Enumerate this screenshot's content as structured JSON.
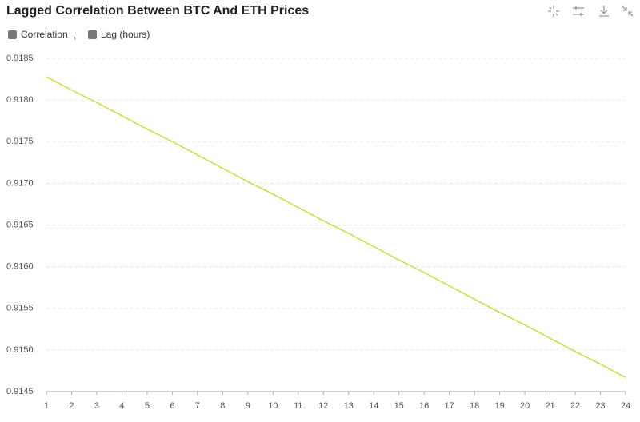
{
  "chart_data": {
    "type": "line",
    "title": "Lagged Correlation Between BTC And ETH Prices",
    "x_label": "Lag (hours)",
    "legend_separator": ",",
    "x": [
      1,
      2,
      3,
      4,
      5,
      6,
      7,
      8,
      9,
      10,
      11,
      12,
      13,
      14,
      15,
      16,
      17,
      18,
      19,
      20,
      21,
      22,
      23,
      24
    ],
    "series": [
      {
        "name": "Correlation",
        "color": "#cddc39",
        "values": [
          0.91828,
          0.91812,
          0.91797,
          0.91781,
          0.91765,
          0.9175,
          0.91734,
          0.91718,
          0.91702,
          0.91687,
          0.91671,
          0.91655,
          0.9164,
          0.91624,
          0.91608,
          0.91593,
          0.91577,
          0.91561,
          0.91545,
          0.9153,
          0.91514,
          0.91498,
          0.91483,
          0.91467
        ]
      }
    ],
    "xlim": [
      1,
      24
    ],
    "xticks": [
      1,
      2,
      3,
      4,
      5,
      6,
      7,
      8,
      9,
      10,
      11,
      12,
      13,
      14,
      15,
      16,
      17,
      18,
      19,
      20,
      21,
      22,
      23,
      24
    ],
    "ylim": [
      0.9145,
      0.9185
    ],
    "yticks": [
      0.9145,
      {
        "value": 0.915,
        "label": "0.9150"
      },
      0.9155,
      {
        "value": 0.916,
        "label": "0.9160"
      },
      0.9165,
      {
        "value": 0.917,
        "label": "0.9170"
      },
      0.9175,
      {
        "value": 0.918,
        "label": "0.9180"
      },
      0.9185
    ],
    "grid": true
  }
}
